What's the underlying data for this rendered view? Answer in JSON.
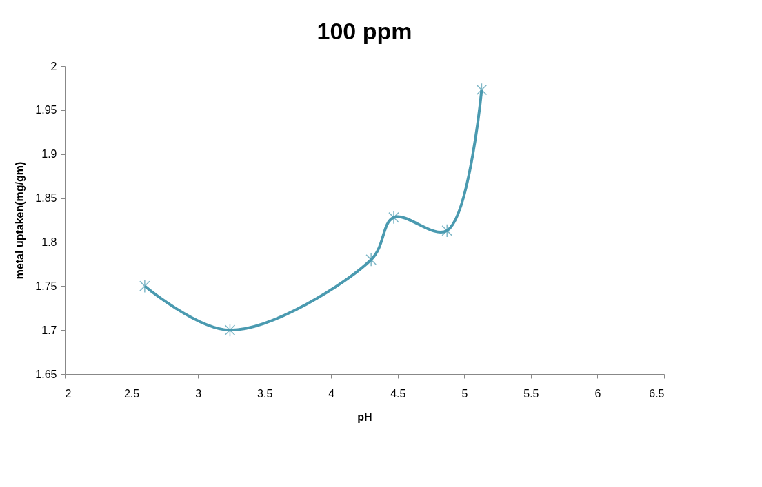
{
  "chart_data": {
    "type": "line",
    "title": "100 ppm",
    "xlabel": "pH",
    "ylabel": "metal uptaken(mg/gm)",
    "x": [
      2.6,
      3.24,
      4.3,
      4.47,
      4.87,
      5.13
    ],
    "series": [
      {
        "color": "#4a9ab0",
        "values": [
          1.75,
          1.7,
          1.78,
          1.828,
          1.813,
          1.973
        ]
      }
    ],
    "xlim": [
      2,
      6.5
    ],
    "xticks": [
      2,
      2.5,
      3,
      3.5,
      4,
      4.5,
      5,
      5.5,
      6,
      6.5
    ],
    "ylim": [
      1.65,
      2
    ],
    "yticks": [
      1.65,
      1.7,
      1.75,
      1.8,
      1.85,
      1.9,
      1.95,
      2
    ],
    "grid": false,
    "marker": "cross",
    "line_style": "solid"
  }
}
